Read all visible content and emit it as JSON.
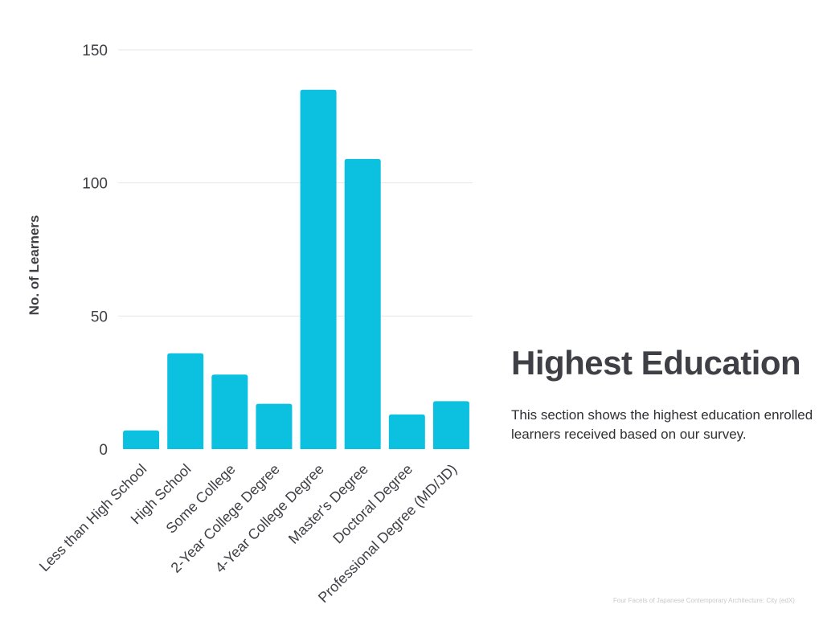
{
  "chart_data": {
    "type": "bar",
    "categories": [
      "Less than High School",
      "High School",
      "Some College",
      "2-Year College Degree",
      "4-Year College Degree",
      "Master's Degree",
      "Doctoral Degree",
      "Professional Degree (MD/JD)"
    ],
    "values": [
      7,
      36,
      28,
      17,
      135,
      109,
      13,
      18
    ],
    "ylabel": "No. of Learners",
    "xlabel": "",
    "ylim": [
      0,
      150
    ],
    "yticks": [
      0,
      50,
      100,
      150
    ],
    "grid": true,
    "bar_color": "#0cc0df",
    "grid_color": "#e6e6e6"
  },
  "side": {
    "title": "Highest Education",
    "description": "This section shows the highest education enrolled learners received based on our survey."
  },
  "footer": {
    "credit": "Four Facets of Japanese Contemporary Architecture: City (edX)"
  }
}
